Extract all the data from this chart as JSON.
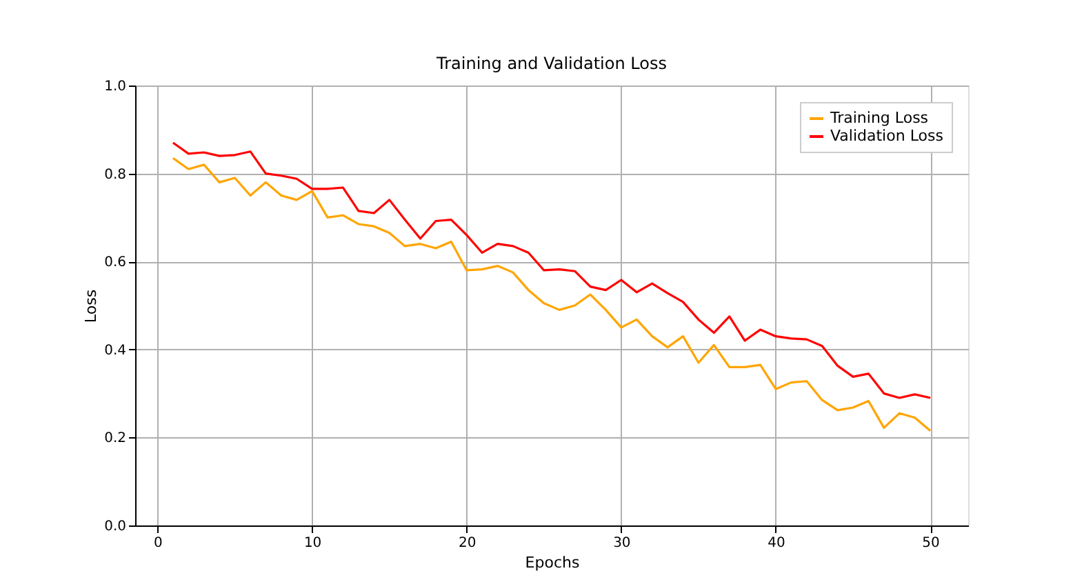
{
  "chart_data": {
    "type": "line",
    "title": "Training and Validation Loss",
    "xlabel": "Epochs",
    "ylabel": "Loss",
    "x": [
      1,
      2,
      3,
      4,
      5,
      6,
      7,
      8,
      9,
      10,
      11,
      12,
      13,
      14,
      15,
      16,
      17,
      18,
      19,
      20,
      21,
      22,
      23,
      24,
      25,
      26,
      27,
      28,
      29,
      30,
      31,
      32,
      33,
      34,
      35,
      36,
      37,
      38,
      39,
      40,
      41,
      42,
      43,
      44,
      45,
      46,
      47,
      48,
      49,
      50
    ],
    "series": [
      {
        "name": "Training Loss",
        "color": "#ffa500",
        "values": [
          0.835,
          0.81,
          0.82,
          0.78,
          0.79,
          0.75,
          0.78,
          0.75,
          0.74,
          0.76,
          0.7,
          0.705,
          0.685,
          0.68,
          0.665,
          0.635,
          0.64,
          0.63,
          0.645,
          0.58,
          0.582,
          0.59,
          0.575,
          0.535,
          0.505,
          0.49,
          0.5,
          0.525,
          0.49,
          0.45,
          0.468,
          0.43,
          0.405,
          0.43,
          0.37,
          0.41,
          0.36,
          0.36,
          0.365,
          0.31,
          0.325,
          0.328,
          0.285,
          0.262,
          0.268,
          0.283,
          0.222,
          0.255,
          0.245,
          0.215
        ]
      },
      {
        "name": "Validation Loss",
        "color": "#ff0000",
        "values": [
          0.87,
          0.845,
          0.848,
          0.84,
          0.842,
          0.85,
          0.8,
          0.795,
          0.788,
          0.765,
          0.765,
          0.768,
          0.715,
          0.71,
          0.74,
          0.695,
          0.652,
          0.692,
          0.695,
          0.66,
          0.62,
          0.64,
          0.635,
          0.62,
          0.58,
          0.582,
          0.578,
          0.543,
          0.535,
          0.558,
          0.53,
          0.55,
          0.528,
          0.508,
          0.468,
          0.438,
          0.475,
          0.42,
          0.445,
          0.43,
          0.425,
          0.423,
          0.408,
          0.363,
          0.338,
          0.345,
          0.3,
          0.29,
          0.298,
          0.29
        ]
      }
    ],
    "xlim": [
      -1.45,
      52.45
    ],
    "xticks": [
      0,
      10,
      20,
      30,
      40,
      50
    ],
    "ylim": [
      0,
      1
    ],
    "yticks": [
      {
        "value": 0,
        "label": "0.0"
      },
      {
        "value": 0.2,
        "label": "0.2"
      },
      {
        "value": 0.4,
        "label": "0.4"
      },
      {
        "value": 0.6,
        "label": "0.6"
      },
      {
        "value": 0.8,
        "label": "0.8"
      },
      {
        "value": 1,
        "label": "1.0"
      }
    ],
    "grid": true,
    "legend": "top right",
    "line_style": "solid",
    "marker": "none"
  }
}
